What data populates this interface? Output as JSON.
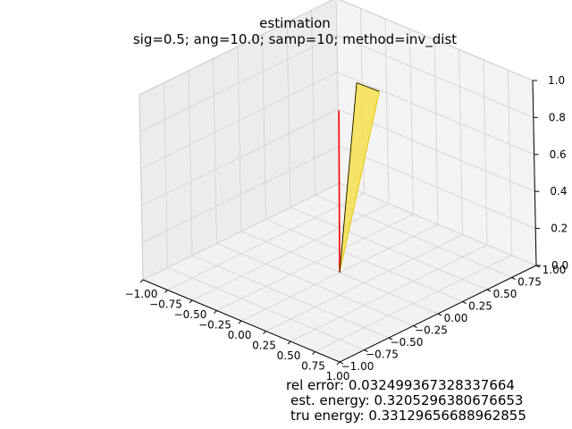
{
  "title": "estimation",
  "subtitle": "sig=0.5; ang=10.0; samp=10; method=inv_dist",
  "stats": {
    "rel_error": "rel error: 0.032499367328337664",
    "est_energy": "est. energy: 0.3205296380676653",
    "tru_energy": "tru energy: 0.33129656688962855"
  },
  "chart_data": {
    "type": "3d-surface",
    "title": "estimation",
    "subtitle": "sig=0.5; ang=10.0; samp=10; method=inv_dist",
    "x_ticks": [
      "−1.00",
      "−0.75",
      "−0.50",
      "−0.25",
      "0.00",
      "0.25",
      "0.50",
      "0.75",
      "1.00"
    ],
    "y_ticks": [
      "−1.00",
      "−0.75",
      "−0.50",
      "−0.25",
      "0.00",
      "0.25",
      "0.50",
      "0.75",
      "1.00"
    ],
    "z_ticks": [
      "0.0",
      "0.2",
      "0.4",
      "0.6",
      "0.8",
      "1.0"
    ],
    "xlim": [
      -1,
      1
    ],
    "ylim": [
      -1,
      1
    ],
    "zlim": [
      0,
      1
    ],
    "grid": true,
    "series": [
      {
        "kind": "line",
        "color": "#ff0000",
        "points": [
          [
            0,
            0,
            0
          ],
          [
            -0.23,
            0.25,
            0.76
          ]
        ]
      },
      {
        "kind": "surface",
        "color": "#f5e050",
        "edge": "#000000",
        "polygon": [
          [
            0,
            0,
            0
          ],
          [
            0.06,
            0.15,
            1.0
          ],
          [
            0.28,
            0.16,
            1.0
          ]
        ]
      }
    ],
    "colors": {
      "line": "#ff0000",
      "surface": "#f5e050",
      "pane": "#f2f2f2",
      "grid": "#d0d0d0"
    }
  }
}
